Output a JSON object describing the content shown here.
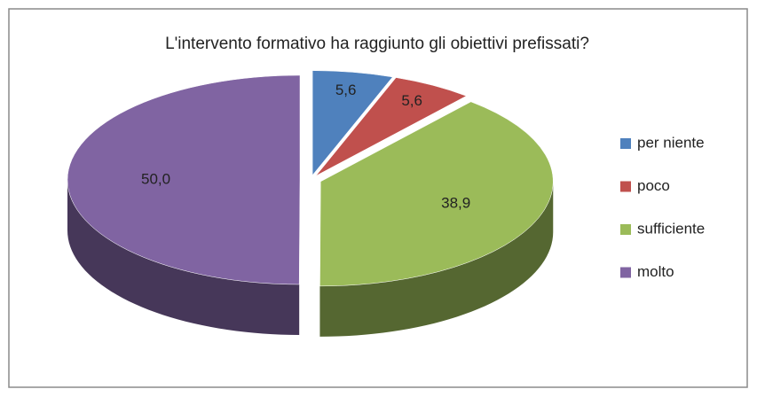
{
  "chart_data": {
    "type": "pie",
    "title": "L'intervento formativo ha raggiunto gli obiettivi prefissati?",
    "categories": [
      "per niente",
      "poco",
      "sufficiente",
      "molto"
    ],
    "values": [
      5.6,
      5.6,
      38.9,
      50.0
    ],
    "value_labels": [
      "5,6",
      "5,6",
      "38,9",
      "50,0"
    ],
    "colors": [
      "#4f81bd",
      "#c0504d",
      "#9bbb59",
      "#8064a2"
    ],
    "legend": "right"
  }
}
